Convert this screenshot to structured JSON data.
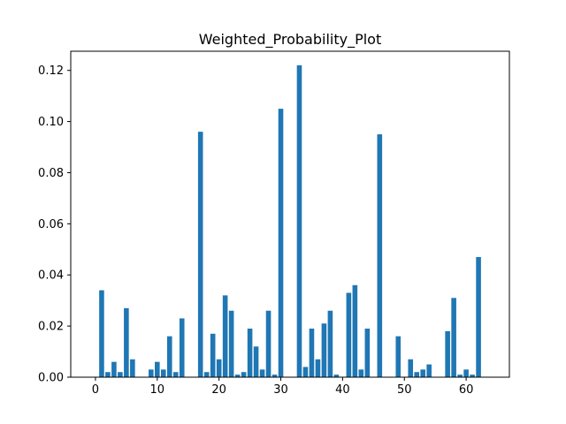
{
  "chart_data": {
    "type": "bar",
    "title": "Weighted_Probability_Plot",
    "xlabel": "",
    "ylabel": "",
    "xlim": [
      -4,
      67
    ],
    "ylim": [
      0,
      0.1275
    ],
    "x_ticks": [
      0,
      10,
      20,
      30,
      40,
      50,
      60
    ],
    "x_tick_labels": [
      "0",
      "10",
      "20",
      "30",
      "40",
      "50",
      "60"
    ],
    "y_ticks": [
      0.0,
      0.02,
      0.04,
      0.06,
      0.08,
      0.1,
      0.12
    ],
    "y_tick_labels": [
      "0.00",
      "0.02",
      "0.04",
      "0.06",
      "0.08",
      "0.10",
      "0.12"
    ],
    "bar_color": "#1f77b4",
    "grid": false,
    "x": [
      0,
      1,
      2,
      3,
      4,
      5,
      6,
      7,
      8,
      9,
      10,
      11,
      12,
      13,
      14,
      15,
      16,
      17,
      18,
      19,
      20,
      21,
      22,
      23,
      24,
      25,
      26,
      27,
      28,
      29,
      30,
      31,
      32,
      33,
      34,
      35,
      36,
      37,
      38,
      39,
      40,
      41,
      42,
      43,
      44,
      45,
      46,
      47,
      48,
      49,
      50,
      51,
      52,
      53,
      54,
      55,
      56,
      57,
      58,
      59,
      60,
      61,
      62
    ],
    "values": [
      0.0,
      0.034,
      0.002,
      0.006,
      0.002,
      0.027,
      0.007,
      0.0,
      0.0,
      0.003,
      0.006,
      0.003,
      0.016,
      0.002,
      0.023,
      0.0,
      0.0,
      0.096,
      0.002,
      0.017,
      0.007,
      0.032,
      0.026,
      0.001,
      0.002,
      0.019,
      0.012,
      0.003,
      0.026,
      0.001,
      0.105,
      0.0,
      0.0,
      0.122,
      0.004,
      0.019,
      0.007,
      0.021,
      0.026,
      0.001,
      0.0,
      0.033,
      0.036,
      0.003,
      0.019,
      0.0,
      0.095,
      0.0,
      0.0,
      0.016,
      0.0,
      0.007,
      0.002,
      0.003,
      0.005,
      0.0,
      0.0,
      0.018,
      0.031,
      0.001,
      0.003,
      0.001,
      0.047
    ]
  }
}
